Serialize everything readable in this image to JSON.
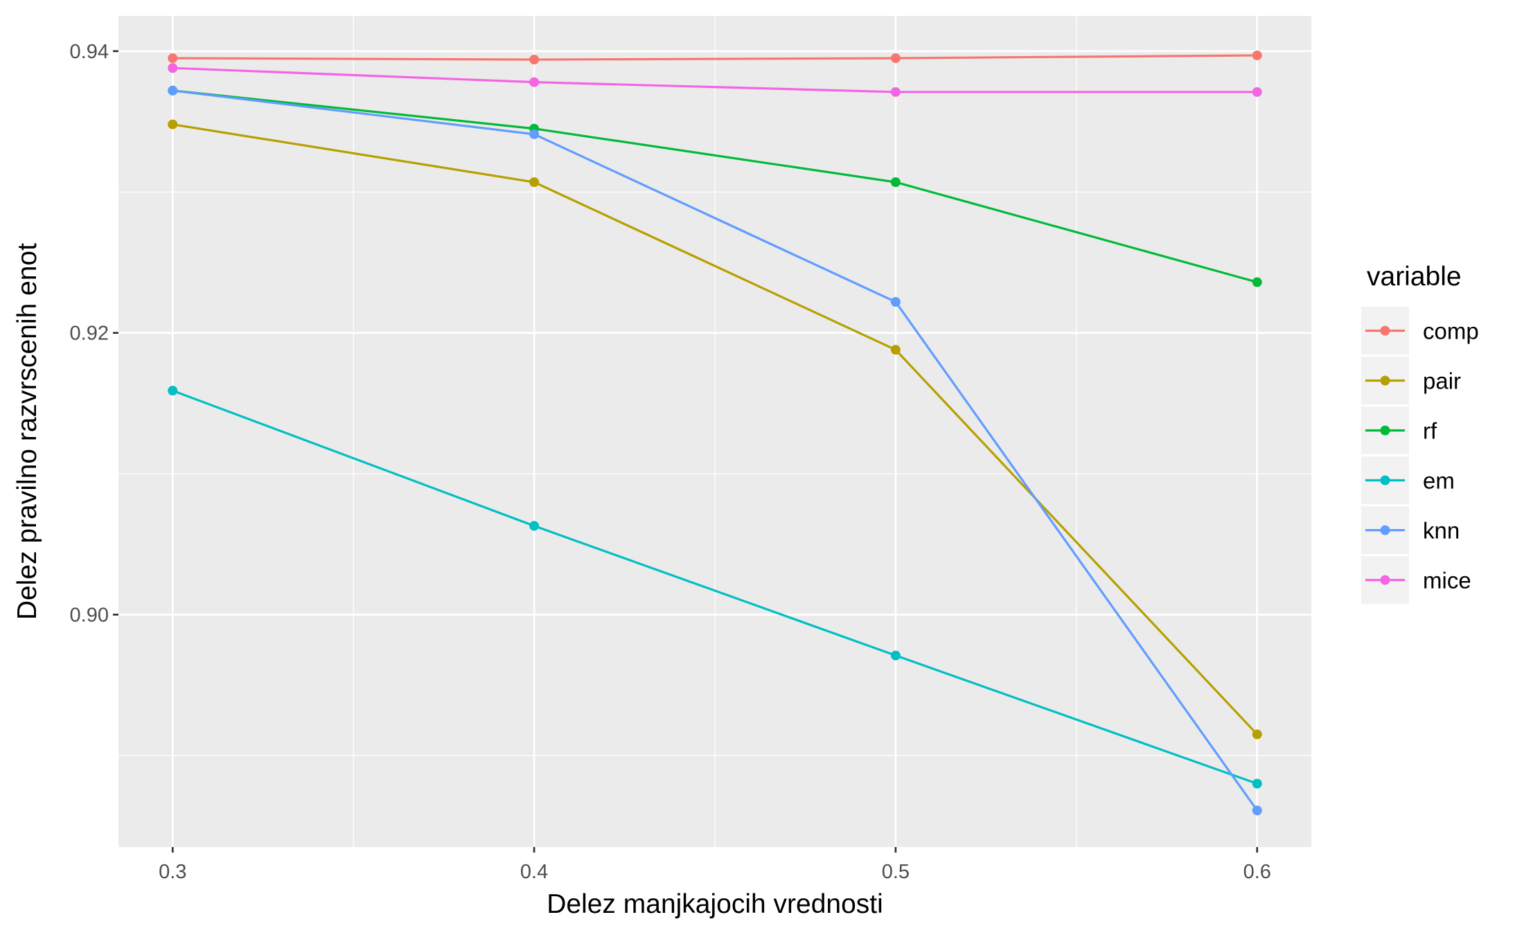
{
  "chart_data": {
    "type": "line",
    "xlabel": "Delez manjkajocih vrednosti",
    "ylabel": "Delez pravilno razvrscenih enot",
    "x": [
      0.3,
      0.4,
      0.5,
      0.6
    ],
    "x_ticks": [
      "0.3",
      "0.4",
      "0.5",
      "0.6"
    ],
    "y_ticks": [
      "0.90",
      "0.92",
      "0.94"
    ],
    "y_tick_values": [
      0.9,
      0.92,
      0.94
    ],
    "xlim": [
      0.285,
      0.615
    ],
    "ylim": [
      0.8835,
      0.9425
    ],
    "grid": true,
    "legend_title": "variable",
    "legend_position": "right",
    "series": [
      {
        "name": "comp",
        "color": "#F8766D",
        "values": [
          0.9395,
          0.9394,
          0.9395,
          0.9397
        ]
      },
      {
        "name": "pair",
        "color": "#B79F00",
        "values": [
          0.9348,
          0.9307,
          0.9188,
          0.8915
        ]
      },
      {
        "name": "rf",
        "color": "#00BA38",
        "values": [
          0.9372,
          0.9345,
          0.9307,
          0.9236
        ]
      },
      {
        "name": "em",
        "color": "#00BFC4",
        "values": [
          0.9159,
          0.9063,
          0.8971,
          0.888
        ]
      },
      {
        "name": "knn",
        "color": "#619CFF",
        "values": [
          0.9372,
          0.9341,
          0.9222,
          0.8861
        ]
      },
      {
        "name": "mice",
        "color": "#F564E3",
        "values": [
          0.9388,
          0.9378,
          0.9371,
          0.9371
        ]
      }
    ]
  }
}
